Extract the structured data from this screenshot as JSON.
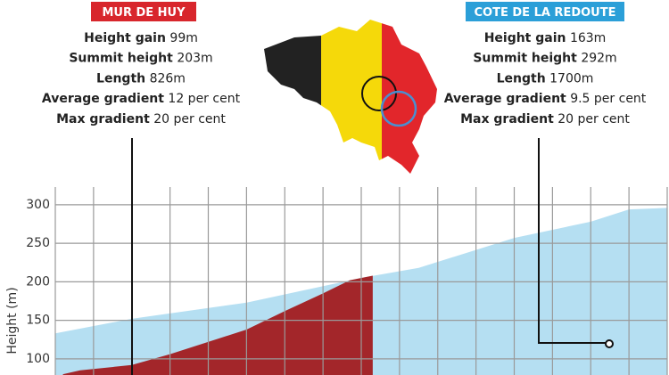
{
  "left_panel": {
    "title": "MUR DE HUY",
    "stats": [
      {
        "label": "Height gain",
        "value": "99m"
      },
      {
        "label": "Summit height",
        "value": "203m"
      },
      {
        "label": "Length",
        "value": "826m"
      },
      {
        "label": "Average gradient",
        "value": "12 per cent"
      },
      {
        "label": "Max gradient",
        "value": "20 per cent"
      }
    ]
  },
  "right_panel": {
    "title": "COTE DE LA REDOUTE",
    "stats": [
      {
        "label": "Height gain",
        "value": "163m"
      },
      {
        "label": "Summit height",
        "value": "292m"
      },
      {
        "label": "Length",
        "value": "1700m"
      },
      {
        "label": "Average gradient",
        "value": "9.5 per cent"
      },
      {
        "label": "Max gradient",
        "value": "20 per cent"
      }
    ]
  },
  "chart_data": {
    "type": "area",
    "ylabel": "Height (m)",
    "xlim": [
      0,
      16
    ],
    "ylim": [
      79,
      323
    ],
    "yticks": [
      100,
      150,
      200,
      250,
      300
    ],
    "grid": true,
    "series": [
      {
        "name": "Cote de la Redoute",
        "color": "#b5dff2",
        "x": [
          0,
          2,
          5,
          8,
          9.5,
          12,
          14,
          15,
          16
        ],
        "values": [
          133,
          152,
          173,
          205,
          218,
          257,
          278,
          294,
          296
        ]
      },
      {
        "name": "Mur de Huy",
        "color": "#a3262a",
        "x": [
          0.2,
          0.65,
          2,
          3,
          5,
          6,
          7,
          7.7,
          8.3
        ],
        "values": [
          80,
          85,
          92,
          106,
          138,
          162,
          185,
          202,
          208
        ]
      }
    ]
  }
}
